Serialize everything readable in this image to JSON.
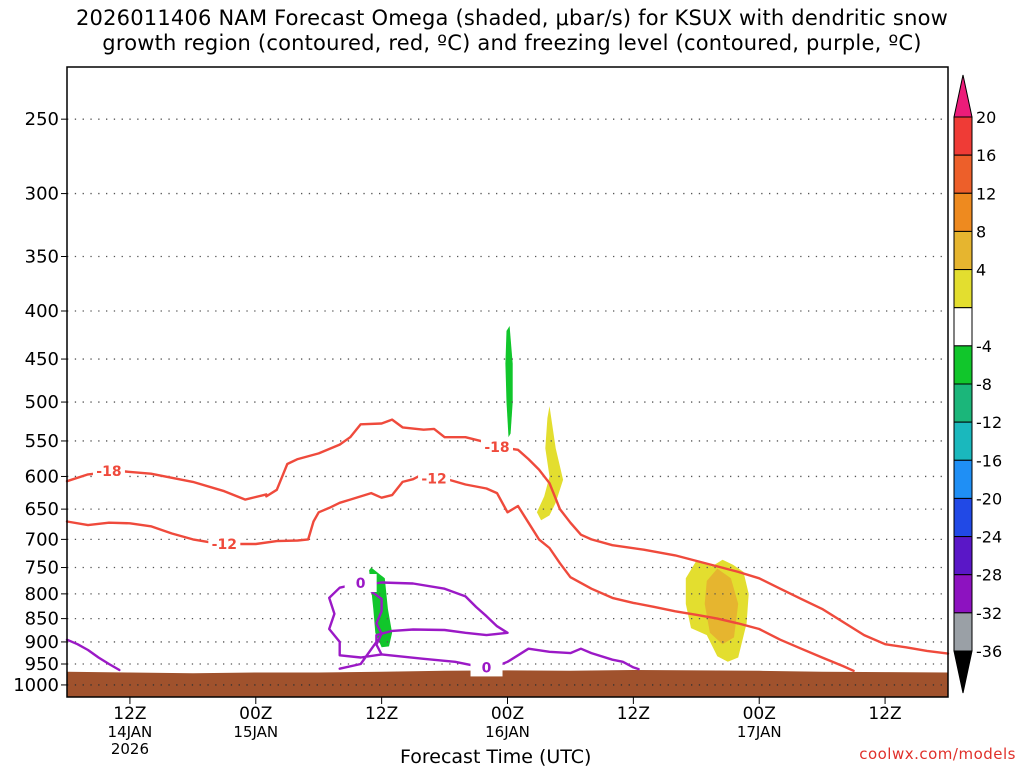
{
  "title": {
    "line1": "2026011406 NAM Forecast Omega (shaded, μbar/s) for KSUX with dendritic snow",
    "line2": "growth region (contoured, red, ºC) and freezing level (contoured, purple, ºC)"
  },
  "chart_data": {
    "type": "time-height-section",
    "xlabel": "Forecast Time (UTC)",
    "ylabel": "",
    "y_axis": {
      "unit": "hPa",
      "inverted": true,
      "range": [
        220,
        1030
      ],
      "ticks": [
        250,
        300,
        350,
        400,
        450,
        500,
        550,
        600,
        650,
        700,
        750,
        800,
        850,
        900,
        950,
        1000
      ]
    },
    "x_axis": {
      "unit": "forecast hour",
      "range": [
        0,
        84
      ],
      "ticks": [
        {
          "hour": 6,
          "label": "12Z",
          "sub": "14JAN",
          "sub2": "2026"
        },
        {
          "hour": 18,
          "label": "00Z",
          "sub": "15JAN",
          "sub2": ""
        },
        {
          "hour": 30,
          "label": "12Z",
          "sub": "",
          "sub2": ""
        },
        {
          "hour": 42,
          "label": "00Z",
          "sub": "16JAN",
          "sub2": ""
        },
        {
          "hour": 54,
          "label": "12Z",
          "sub": "",
          "sub2": ""
        },
        {
          "hour": 66,
          "label": "00Z",
          "sub": "17JAN",
          "sub2": ""
        },
        {
          "hour": 78,
          "label": "12Z",
          "sub": "",
          "sub2": ""
        }
      ]
    },
    "ground": {
      "color": "#a0522d",
      "points": [
        [
          0,
          968
        ],
        [
          6,
          970
        ],
        [
          12,
          972
        ],
        [
          18,
          970
        ],
        [
          24,
          970
        ],
        [
          30,
          968
        ],
        [
          36,
          966
        ],
        [
          42,
          965
        ],
        [
          48,
          966
        ],
        [
          54,
          964
        ],
        [
          60,
          965
        ],
        [
          66,
          966
        ],
        [
          72,
          968
        ],
        [
          78,
          969
        ],
        [
          84,
          970
        ]
      ]
    },
    "contours": [
      {
        "name": "dgz-minus-18",
        "level": -18,
        "label": "-18",
        "color": "#ef4a3c",
        "label_points": [
          [
            4,
            592
          ],
          [
            41,
            558
          ]
        ],
        "points": [
          [
            0,
            607
          ],
          [
            2,
            597
          ],
          [
            5,
            592
          ],
          [
            8,
            596
          ],
          [
            12,
            608
          ],
          [
            15,
            622
          ],
          [
            17,
            635
          ],
          [
            19,
            627
          ],
          [
            19,
            630
          ],
          [
            20,
            620
          ],
          [
            21,
            582
          ],
          [
            22,
            575
          ],
          [
            24,
            567
          ],
          [
            26,
            555
          ],
          [
            27,
            545
          ],
          [
            28,
            528
          ],
          [
            30,
            527
          ],
          [
            31,
            522
          ],
          [
            32,
            532
          ],
          [
            34,
            535
          ],
          [
            35,
            534
          ],
          [
            36,
            545
          ],
          [
            38,
            545
          ],
          [
            40,
            552
          ],
          [
            41,
            558
          ],
          [
            43,
            562
          ],
          [
            44,
            575
          ],
          [
            45,
            590
          ],
          [
            46,
            610
          ],
          [
            47,
            650
          ],
          [
            48,
            672
          ],
          [
            49,
            692
          ],
          [
            50,
            700
          ],
          [
            52,
            710
          ],
          [
            55,
            718
          ],
          [
            58,
            728
          ],
          [
            60,
            738
          ],
          [
            62,
            748
          ],
          [
            64,
            758
          ],
          [
            66,
            770
          ],
          [
            68,
            790
          ],
          [
            70,
            810
          ],
          [
            72,
            830
          ],
          [
            74,
            857
          ],
          [
            76,
            885
          ],
          [
            78,
            905
          ],
          [
            80,
            912
          ],
          [
            82,
            920
          ],
          [
            84,
            926
          ]
        ]
      },
      {
        "name": "dgz-minus-12",
        "level": -12,
        "label": "-12",
        "color": "#ef4a3c",
        "label_points": [
          [
            15,
            708
          ],
          [
            35,
            603
          ]
        ],
        "points": [
          [
            0,
            670
          ],
          [
            2,
            676
          ],
          [
            4,
            672
          ],
          [
            6,
            673
          ],
          [
            8,
            678
          ],
          [
            10,
            690
          ],
          [
            12,
            700
          ],
          [
            14,
            706
          ],
          [
            16,
            708
          ],
          [
            18,
            708
          ],
          [
            20,
            703
          ],
          [
            22,
            702
          ],
          [
            23,
            700
          ],
          [
            23.5,
            670
          ],
          [
            24,
            655
          ],
          [
            25,
            648
          ],
          [
            26,
            640
          ],
          [
            27,
            635
          ],
          [
            28,
            630
          ],
          [
            29,
            625
          ],
          [
            30,
            632
          ],
          [
            31,
            628
          ],
          [
            32,
            608
          ],
          [
            33,
            604
          ],
          [
            34,
            596
          ],
          [
            35,
            598
          ],
          [
            36,
            603
          ],
          [
            38,
            612
          ],
          [
            40,
            618
          ],
          [
            41,
            625
          ],
          [
            42,
            655
          ],
          [
            43,
            645
          ],
          [
            44,
            672
          ],
          [
            45,
            700
          ],
          [
            46,
            715
          ],
          [
            47,
            742
          ],
          [
            48,
            768
          ],
          [
            50,
            790
          ],
          [
            52,
            808
          ],
          [
            54,
            818
          ],
          [
            56,
            826
          ],
          [
            58,
            835
          ],
          [
            60,
            842
          ],
          [
            62,
            850
          ],
          [
            64,
            860
          ],
          [
            66,
            872
          ],
          [
            68,
            895
          ],
          [
            70,
            915
          ],
          [
            72,
            935
          ],
          [
            74,
            955
          ],
          [
            75,
            966
          ]
        ]
      },
      {
        "name": "freezing-level-a",
        "level": 0,
        "label": "0",
        "color": "#9b19c6",
        "label_points": [
          [
            28,
            779
          ]
        ],
        "points": [
          [
            28,
            779
          ],
          [
            26,
            788
          ],
          [
            25,
            808
          ],
          [
            25.5,
            840
          ],
          [
            25,
            872
          ],
          [
            26,
            900
          ],
          [
            26,
            930
          ],
          [
            28,
            935
          ],
          [
            30,
            928
          ],
          [
            29.5,
            906
          ],
          [
            30,
            882
          ],
          [
            29.5,
            860
          ],
          [
            30,
            835
          ],
          [
            30,
            810
          ],
          [
            29,
            795
          ],
          [
            28.5,
            785
          ],
          [
            29,
            781
          ],
          [
            30,
            778
          ],
          [
            33,
            780
          ],
          [
            36,
            790
          ],
          [
            38,
            805
          ],
          [
            39,
            826
          ],
          [
            40,
            845
          ],
          [
            41,
            866
          ],
          [
            42,
            880
          ],
          [
            40,
            885
          ],
          [
            38,
            880
          ],
          [
            36,
            874
          ],
          [
            33,
            873
          ],
          [
            31,
            876
          ],
          [
            29.5,
            885
          ],
          [
            29.5,
            900
          ],
          [
            28,
            950
          ],
          [
            26,
            961
          ]
        ]
      },
      {
        "name": "freezing-level-b",
        "level": 0,
        "label": "0",
        "color": "#9b19c6",
        "label_points": [
          [
            40,
            958
          ]
        ],
        "points": [
          [
            30,
            928
          ],
          [
            34,
            938
          ],
          [
            37,
            945
          ],
          [
            39,
            955
          ],
          [
            40,
            958
          ],
          [
            41,
            955
          ],
          [
            42,
            945
          ],
          [
            43,
            930
          ],
          [
            44,
            915
          ],
          [
            46,
            922
          ],
          [
            48,
            925
          ],
          [
            49,
            915
          ],
          [
            50,
            925
          ],
          [
            52,
            940
          ],
          [
            53,
            945
          ],
          [
            54,
            958
          ],
          [
            54.5,
            962
          ]
        ]
      },
      {
        "name": "freezing-level-c",
        "level": 0,
        "label": "",
        "color": "#9b19c6",
        "label_points": [],
        "points": [
          [
            0,
            895
          ],
          [
            1,
            905
          ],
          [
            2,
            918
          ],
          [
            3,
            935
          ],
          [
            4,
            950
          ],
          [
            5,
            964
          ]
        ]
      }
    ],
    "shaded": [
      {
        "name": "omega-green-upper",
        "color": "#11c62b",
        "points": [
          [
            42.2,
            415
          ],
          [
            42.5,
            455
          ],
          [
            42.5,
            500
          ],
          [
            42.3,
            540
          ],
          [
            42.1,
            545
          ],
          [
            41.9,
            500
          ],
          [
            41.8,
            455
          ],
          [
            41.9,
            420
          ]
        ]
      },
      {
        "name": "omega-green-lower",
        "color": "#11c62b",
        "points": [
          [
            29,
            750
          ],
          [
            30.3,
            770
          ],
          [
            30.6,
            830
          ],
          [
            31,
            880
          ],
          [
            30.7,
            910
          ],
          [
            30,
            912
          ],
          [
            29.4,
            880
          ],
          [
            29.2,
            830
          ],
          [
            29,
            790
          ],
          [
            28.8,
            755
          ]
        ]
      },
      {
        "name": "omega-yellow-upper",
        "color": "#e3de2f",
        "points": [
          [
            46,
            505
          ],
          [
            46.6,
            560
          ],
          [
            47.3,
            605
          ],
          [
            46.6,
            640
          ],
          [
            46,
            660
          ],
          [
            45.2,
            668
          ],
          [
            44.8,
            655
          ],
          [
            45.5,
            630
          ],
          [
            46,
            600
          ],
          [
            45.6,
            560
          ],
          [
            45.8,
            520
          ]
        ]
      },
      {
        "name": "omega-yellow-lower",
        "color": "#e3de2f",
        "points": [
          [
            60,
            738
          ],
          [
            61.5,
            748
          ],
          [
            62.5,
            736
          ],
          [
            63.5,
            745
          ],
          [
            64.5,
            758
          ],
          [
            65,
            800
          ],
          [
            64.8,
            860
          ],
          [
            64,
            935
          ],
          [
            63,
            945
          ],
          [
            62,
            932
          ],
          [
            61,
            885
          ],
          [
            59.5,
            870
          ],
          [
            59,
            820
          ],
          [
            59,
            770
          ]
        ]
      },
      {
        "name": "omega-orange-core",
        "color": "#ee8a1f",
        "points": [
          [
            62,
            770
          ],
          [
            62.8,
            790
          ],
          [
            63.5,
            835
          ],
          [
            63,
            870
          ],
          [
            62.2,
            878
          ],
          [
            61.5,
            850
          ],
          [
            61.3,
            810
          ],
          [
            61.6,
            780
          ]
        ]
      },
      {
        "name": "omega-amber-ring",
        "color": "#e6b52f",
        "points": [
          [
            62,
            752
          ],
          [
            63.3,
            770
          ],
          [
            64,
            820
          ],
          [
            63.6,
            890
          ],
          [
            62.5,
            905
          ],
          [
            61.3,
            880
          ],
          [
            60.8,
            820
          ],
          [
            61,
            775
          ]
        ]
      }
    ],
    "colorbar": {
      "ticks": [
        "20",
        "16",
        "12",
        "8",
        "4",
        "-4",
        "-8",
        "-12",
        "-16",
        "-20",
        "-24",
        "-28",
        "-32",
        "-36"
      ],
      "colors": [
        "#ec1c79",
        "#ef3b36",
        "#ed5f2a",
        "#ee8a1f",
        "#e6b52f",
        "#e3de2f",
        "#ffffff",
        "#11c62b",
        "#1bb67a",
        "#1ab8bd",
        "#1f8ff5",
        "#2149e6",
        "#5a17c7",
        "#8d12c0",
        "#9aa0a6",
        "#000000"
      ]
    }
  },
  "credit": "coolwx.com/models"
}
